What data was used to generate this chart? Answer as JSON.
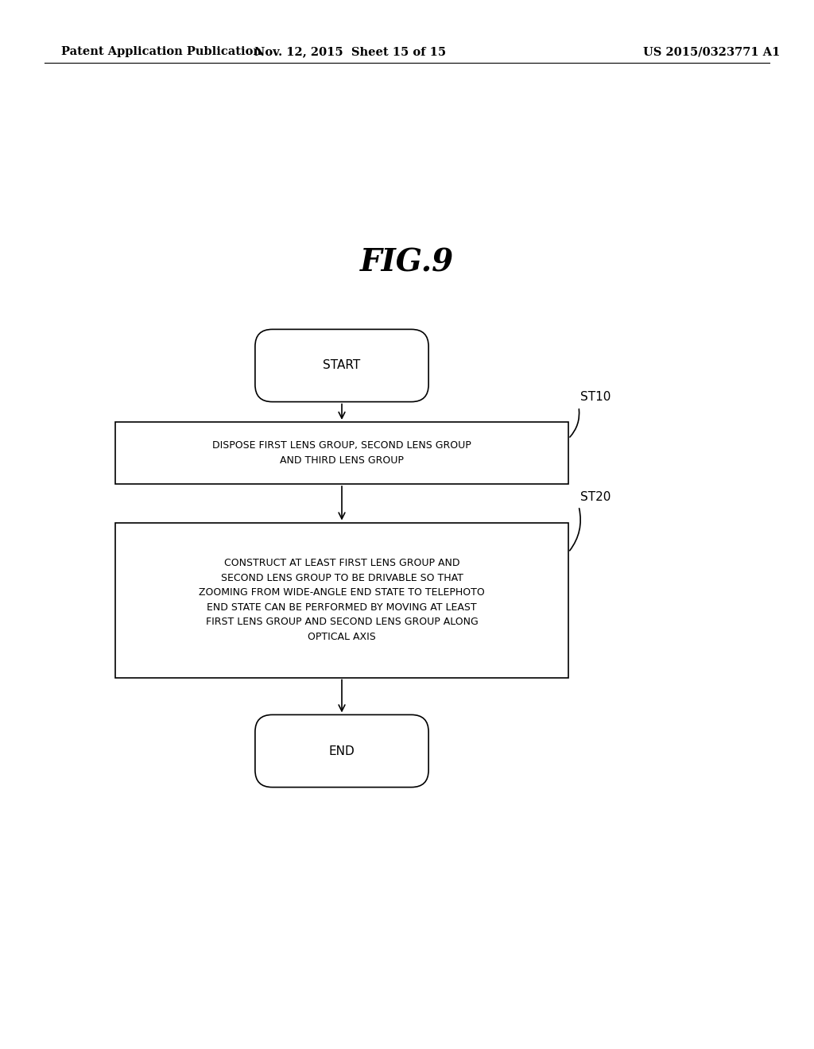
{
  "background_color": "#ffffff",
  "header_left": "Patent Application Publication",
  "header_mid": "Nov. 12, 2015  Sheet 15 of 15",
  "header_right": "US 2015/0323771 A1",
  "header_fontsize": 10.5,
  "fig_title": "FIG.9",
  "fig_title_fontsize": 28,
  "start_label": "START",
  "end_label": "END",
  "box1_text": "DISPOSE FIRST LENS GROUP, SECOND LENS GROUP\nAND THIRD LENS GROUP",
  "box2_text": "CONSTRUCT AT LEAST FIRST LENS GROUP AND\nSECOND LENS GROUP TO BE DRIVABLE SO THAT\nZOOMING FROM WIDE-ANGLE END STATE TO TELEPHOTO\nEND STATE CAN BE PERFORMED BY MOVING AT LEAST\nFIRST LENS GROUP AND SECOND LENS GROUP ALONG\nOPTICAL AXIS",
  "label_st10": "ST10",
  "label_st20": "ST20",
  "border_color": "#000000",
  "text_color": "#000000",
  "arrow_color": "#000000",
  "line_width": 1.2
}
